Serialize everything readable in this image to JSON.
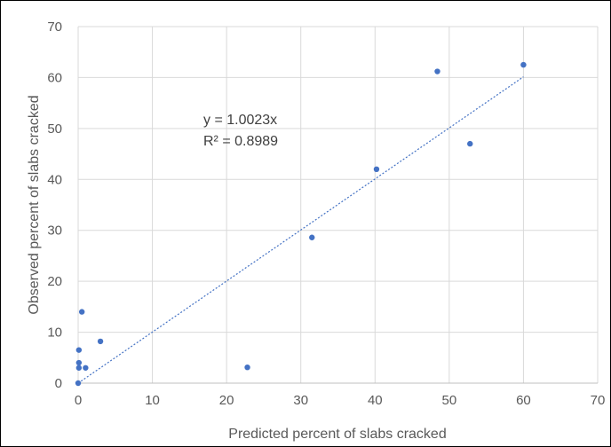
{
  "chart_data": {
    "type": "scatter",
    "xlabel": "Predicted percent of slabs cracked",
    "ylabel": "Observed percent of slabs cracked",
    "xlim": [
      0,
      70
    ],
    "ylim": [
      0,
      70
    ],
    "xticks": [
      0,
      10,
      20,
      30,
      40,
      50,
      60,
      70
    ],
    "yticks": [
      0,
      10,
      20,
      30,
      40,
      50,
      60,
      70
    ],
    "grid": true,
    "marker_color": "#4472c4",
    "trendline_color": "#4472c4",
    "series": [
      {
        "points": [
          {
            "x": 0.0,
            "y": 0.0
          },
          {
            "x": 0.1,
            "y": 3.0
          },
          {
            "x": 0.1,
            "y": 4.0
          },
          {
            "x": 0.1,
            "y": 6.5
          },
          {
            "x": 0.5,
            "y": 14.0
          },
          {
            "x": 1.0,
            "y": 3.0
          },
          {
            "x": 3.0,
            "y": 8.2
          },
          {
            "x": 22.8,
            "y": 3.1
          },
          {
            "x": 31.5,
            "y": 28.6
          },
          {
            "x": 40.2,
            "y": 42.0
          },
          {
            "x": 48.4,
            "y": 61.2
          },
          {
            "x": 52.8,
            "y": 47.0
          },
          {
            "x": 60.0,
            "y": 62.5
          }
        ]
      }
    ],
    "trendline": {
      "slope": 1.0023,
      "x_range": [
        0,
        60
      ],
      "equation_text": "y = 1.0023x",
      "r2_text": "R² = 0.8989"
    }
  }
}
